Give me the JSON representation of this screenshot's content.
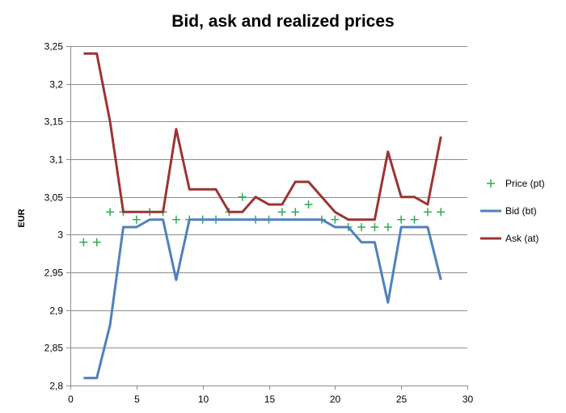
{
  "chart_data": {
    "type": "line",
    "title": "Bid, ask and realized prices",
    "xlabel": "",
    "ylabel": "EUR",
    "xlim": [
      0,
      30
    ],
    "ylim": [
      2.8,
      3.25
    ],
    "x_ticks": [
      0,
      5,
      10,
      15,
      20,
      25,
      30
    ],
    "x_tick_labels": [
      "0",
      "5",
      "10",
      "15",
      "20",
      "25",
      "30"
    ],
    "y_ticks": [
      2.8,
      2.85,
      2.9,
      2.95,
      3.0,
      3.05,
      3.1,
      3.15,
      3.2,
      3.25
    ],
    "y_tick_labels": [
      "2,8",
      "2,85",
      "2,9",
      "2,95",
      "3",
      "3,05",
      "3,1",
      "3,15",
      "3,2",
      "3,25"
    ],
    "grid": "horizontal",
    "legend_position": "right",
    "x": [
      1,
      2,
      3,
      4,
      5,
      6,
      7,
      8,
      9,
      10,
      11,
      12,
      13,
      14,
      15,
      16,
      17,
      18,
      19,
      20,
      21,
      22,
      23,
      24,
      25,
      26,
      27,
      28
    ],
    "series": [
      {
        "name": "Price (pt)",
        "style": "marker",
        "marker": "plus",
        "color": "#2eab54",
        "values": [
          2.99,
          2.99,
          3.03,
          3.03,
          3.02,
          3.03,
          3.03,
          3.02,
          3.02,
          3.02,
          3.02,
          3.03,
          3.05,
          3.02,
          3.02,
          3.03,
          3.03,
          3.04,
          3.02,
          3.02,
          3.01,
          3.01,
          3.01,
          3.01,
          3.02,
          3.02,
          3.03,
          3.03
        ]
      },
      {
        "name": "Bid (bt)",
        "style": "line",
        "color": "#4f81bd",
        "values": [
          2.81,
          2.81,
          2.88,
          3.01,
          3.01,
          3.02,
          3.02,
          2.94,
          3.02,
          3.02,
          3.02,
          3.02,
          3.02,
          3.02,
          3.02,
          3.02,
          3.02,
          3.02,
          3.02,
          3.01,
          3.01,
          2.99,
          2.99,
          2.91,
          3.01,
          3.01,
          3.01,
          2.94
        ]
      },
      {
        "name": "Ask (at)",
        "style": "line",
        "color": "#9b3434",
        "values": [
          3.24,
          3.24,
          3.15,
          3.03,
          3.03,
          3.03,
          3.03,
          3.14,
          3.06,
          3.06,
          3.06,
          3.03,
          3.03,
          3.05,
          3.04,
          3.04,
          3.07,
          3.07,
          3.05,
          3.03,
          3.02,
          3.02,
          3.02,
          3.11,
          3.05,
          3.05,
          3.04,
          3.13
        ]
      }
    ]
  }
}
